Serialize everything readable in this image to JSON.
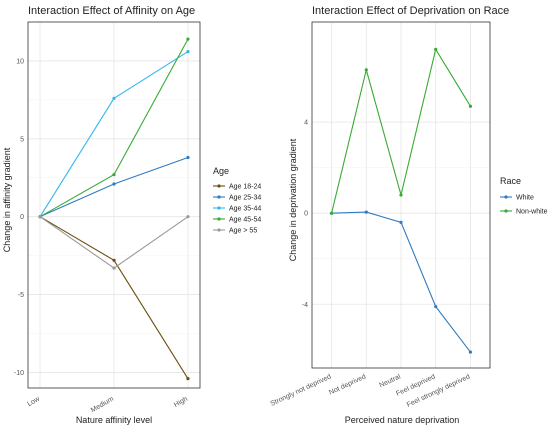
{
  "chart_data": [
    {
      "type": "line",
      "title": "Interaction Effect of Affinity on Age",
      "xlabel": "Nature affinity level",
      "ylabel": "Change in affinity gradient",
      "categories": [
        "Low",
        "Medium",
        "High"
      ],
      "ylim": [
        -11,
        12.5
      ],
      "yticks": [
        -10,
        -5,
        0,
        5,
        10
      ],
      "yticklabels": [
        "-10",
        "-5",
        "0",
        "5",
        "10"
      ],
      "grid": true,
      "legend": {
        "title": "Age",
        "position": "right"
      },
      "series": [
        {
          "name": "Age 18-24",
          "color": "#6b4f0f",
          "values": [
            0,
            -2.8,
            -10.4
          ]
        },
        {
          "name": "Age 25-34",
          "color": "#2f7bbf",
          "values": [
            0,
            2.1,
            3.8
          ]
        },
        {
          "name": "Age 35-44",
          "color": "#35b6e9",
          "values": [
            0,
            7.6,
            10.6
          ]
        },
        {
          "name": "Age 45-54",
          "color": "#3aaa35",
          "values": [
            0,
            2.7,
            11.4
          ]
        },
        {
          "name": "Age > 55",
          "color": "#999999",
          "values": [
            0,
            -3.3,
            0
          ]
        }
      ]
    },
    {
      "type": "line",
      "title": "Interaction Effect of Deprivation on Race",
      "xlabel": "Perceived nature deprivation",
      "ylabel": "Change in deprivation gradient",
      "categories": [
        "Strongly not deprived",
        "Not deprived",
        "Neutral",
        "Feel deprived",
        "Feel strongly deprived"
      ],
      "ylim": [
        -6.8,
        8.4
      ],
      "yticks": [
        -4,
        0,
        4
      ],
      "yticklabels": [
        "-4",
        "0",
        "4"
      ],
      "grid": true,
      "legend": {
        "title": "Race",
        "position": "right"
      },
      "series": [
        {
          "name": "White",
          "color": "#2f7bbf",
          "values": [
            0,
            0.05,
            -0.4,
            -4.1,
            -6.1
          ]
        },
        {
          "name": "Non-white",
          "color": "#3aaa35",
          "values": [
            0,
            6.3,
            0.8,
            7.2,
            4.7
          ]
        }
      ]
    }
  ]
}
